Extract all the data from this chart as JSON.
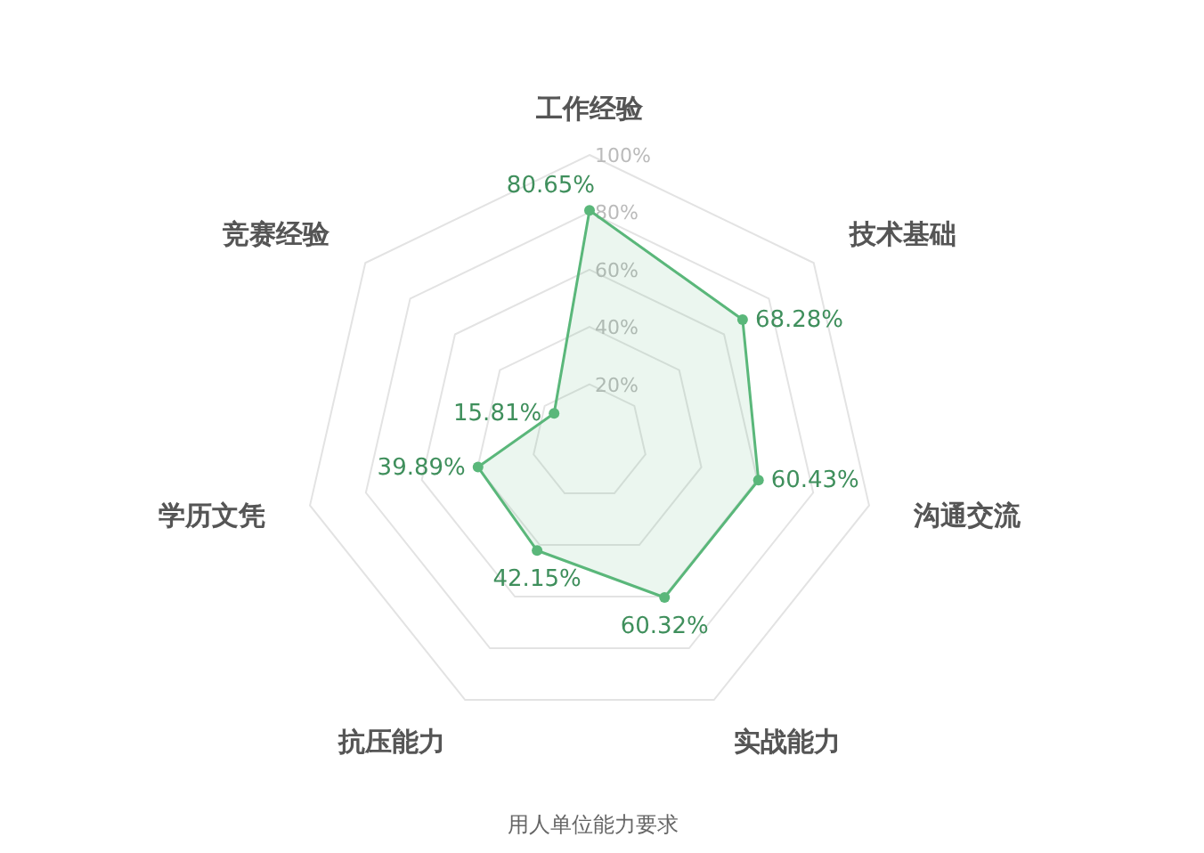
{
  "chart_data": {
    "type": "radar",
    "title": "用人单位能力要求",
    "categories": [
      "工作经验",
      "技术基础",
      "沟通交流",
      "实战能力",
      "抗压能力",
      "学历文凭",
      "竞赛经验"
    ],
    "series": [
      {
        "color": "#5ab77a",
        "values": [
          80.65,
          68.28,
          60.43,
          60.32,
          42.15,
          39.89,
          15.81
        ],
        "value_labels": [
          "80.65%",
          "68.28%",
          "60.43%",
          "60.32%",
          "42.15%",
          "39.89%",
          "15.81%"
        ]
      }
    ],
    "ylim": [
      0,
      100
    ],
    "yticks": [
      {
        "value": 20,
        "label": "20%"
      },
      {
        "value": 40,
        "label": "40%"
      },
      {
        "value": 60,
        "label": "60%"
      },
      {
        "value": 80,
        "label": "80%"
      },
      {
        "value": 100,
        "label": "100%"
      }
    ],
    "grid": true,
    "marker": "circle"
  }
}
